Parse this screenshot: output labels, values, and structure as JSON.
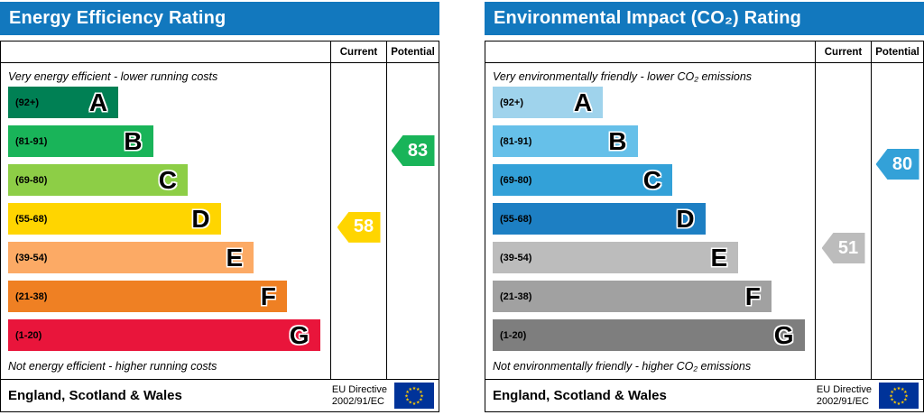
{
  "colors": {
    "panel_header_bg": "#1278be",
    "panel_header_text": "#ffffff",
    "box_border": "#000000",
    "marker_text": "#ffffff",
    "eu_flag_blue": "#003399",
    "eu_star_yellow": "#ffcc00"
  },
  "chart_data": [
    {
      "type": "bar",
      "subtype": "epc-rating-bands",
      "title": "Energy Efficiency Rating",
      "column_headers": [
        "Current",
        "Potential"
      ],
      "top_label": "Very energy efficient - lower running costs",
      "bottom_label": "Not energy efficient - higher running costs",
      "scale": {
        "min": 1,
        "max": 100
      },
      "bands": [
        {
          "grade": "A",
          "range_label": "(92+)",
          "range": [
            92,
            100
          ],
          "color": "#008054",
          "width_pct": 35
        },
        {
          "grade": "B",
          "range_label": "(81-91)",
          "range": [
            81,
            91
          ],
          "color": "#19b459",
          "width_pct": 46
        },
        {
          "grade": "C",
          "range_label": "(69-80)",
          "range": [
            69,
            80
          ],
          "color": "#8dce46",
          "width_pct": 57
        },
        {
          "grade": "D",
          "range_label": "(55-68)",
          "range": [
            55,
            68
          ],
          "color": "#ffd500",
          "width_pct": 67.5
        },
        {
          "grade": "E",
          "range_label": "(39-54)",
          "range": [
            39,
            54
          ],
          "color": "#fcaa65",
          "width_pct": 78
        },
        {
          "grade": "F",
          "range_label": "(21-38)",
          "range": [
            21,
            38
          ],
          "color": "#ef8023",
          "width_pct": 88.5
        },
        {
          "grade": "G",
          "range_label": "(1-20)",
          "range": [
            1,
            20
          ],
          "color": "#e9153b",
          "width_pct": 99
        }
      ],
      "markers": {
        "current": {
          "value": 58,
          "grade": "D",
          "color": "#ffd500"
        },
        "potential": {
          "value": 83,
          "grade": "B",
          "color": "#19b459"
        }
      },
      "footer": {
        "region": "England, Scotland & Wales",
        "directive_line1": "EU Directive",
        "directive_line2": "2002/91/EC"
      }
    },
    {
      "type": "bar",
      "subtype": "epc-rating-bands",
      "title": "Environmental Impact (CO₂) Rating",
      "column_headers": [
        "Current",
        "Potential"
      ],
      "top_label": "Very environmentally friendly - lower CO₂ emissions",
      "bottom_label": "Not environmentally friendly - higher CO₂ emissions",
      "scale": {
        "min": 1,
        "max": 100
      },
      "bands": [
        {
          "grade": "A",
          "range_label": "(92+)",
          "range": [
            92,
            100
          ],
          "color": "#9fd3ec",
          "width_pct": 35
        },
        {
          "grade": "B",
          "range_label": "(81-91)",
          "range": [
            81,
            91
          ],
          "color": "#66c0e9",
          "width_pct": 46
        },
        {
          "grade": "C",
          "range_label": "(69-80)",
          "range": [
            69,
            80
          ],
          "color": "#33a1d8",
          "width_pct": 57
        },
        {
          "grade": "D",
          "range_label": "(55-68)",
          "range": [
            55,
            68
          ],
          "color": "#1d7fc3",
          "width_pct": 67.5
        },
        {
          "grade": "E",
          "range_label": "(39-54)",
          "range": [
            39,
            54
          ],
          "color": "#bcbcbc",
          "width_pct": 78
        },
        {
          "grade": "F",
          "range_label": "(21-38)",
          "range": [
            21,
            38
          ],
          "color": "#a1a1a1",
          "width_pct": 88.5
        },
        {
          "grade": "G",
          "range_label": "(1-20)",
          "range": [
            1,
            20
          ],
          "color": "#7e7e7e",
          "width_pct": 99
        }
      ],
      "markers": {
        "current": {
          "value": 51,
          "grade": "E",
          "color": "#bcbcbc"
        },
        "potential": {
          "value": 80,
          "grade": "C",
          "color": "#33a1d8"
        }
      },
      "footer": {
        "region": "England, Scotland & Wales",
        "directive_line1": "EU Directive",
        "directive_line2": "2002/91/EC"
      }
    }
  ]
}
